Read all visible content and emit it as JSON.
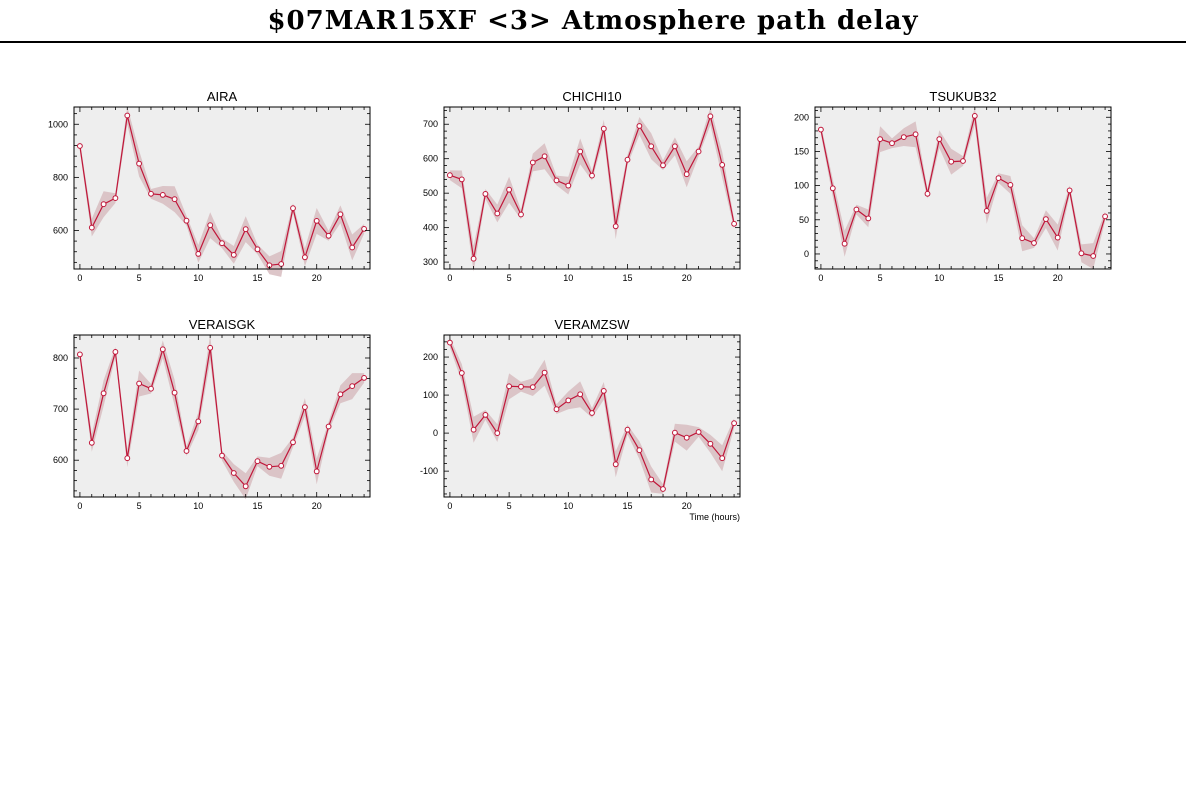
{
  "title": "$07MAR15XF <3>  Atmosphere path delay",
  "colors": {
    "line": "#c0173a",
    "band": "#d7bcc0",
    "panel_bg": "#eeeeee",
    "marker_fill": "#ffffff"
  },
  "chart_data": [
    {
      "type": "line",
      "title": "AIRA",
      "xlim": [
        -0.5,
        24.5
      ],
      "ylim": [
        455,
        1065
      ],
      "xticks": [
        0,
        5,
        10,
        15,
        20
      ],
      "yticks": [
        600,
        800,
        1000
      ],
      "xlabel": "",
      "series": [
        {
          "x": [
            0,
            1,
            2,
            3,
            4,
            5,
            6,
            7,
            8,
            9,
            10,
            11,
            12,
            13,
            14,
            15,
            16,
            17,
            18,
            19,
            20,
            21,
            22,
            23,
            24
          ],
          "values": [
            918,
            611,
            699,
            722,
            1033,
            852,
            738,
            734,
            718,
            637,
            512,
            620,
            552,
            508,
            605,
            529,
            469,
            474,
            684,
            499,
            636,
            580,
            661,
            536,
            606
          ]
        }
      ]
    },
    {
      "type": "line",
      "title": "CHICHI10",
      "xlim": [
        -0.5,
        24.5
      ],
      "ylim": [
        280,
        750
      ],
      "xticks": [
        0,
        5,
        10,
        15,
        20
      ],
      "yticks": [
        300,
        400,
        500,
        600,
        700
      ],
      "xlabel": "",
      "series": [
        {
          "x": [
            0,
            1,
            2,
            3,
            4,
            5,
            6,
            7,
            8,
            9,
            10,
            11,
            12,
            13,
            14,
            15,
            16,
            17,
            18,
            19,
            20,
            21,
            22,
            23,
            24
          ],
          "values": [
            552,
            540,
            310,
            498,
            441,
            510,
            438,
            589,
            607,
            537,
            522,
            621,
            551,
            687,
            404,
            597,
            695,
            636,
            581,
            636,
            555,
            621,
            723,
            582,
            411
          ]
        }
      ]
    },
    {
      "type": "line",
      "title": "TSUKUB32",
      "xlim": [
        -0.5,
        24.5
      ],
      "ylim": [
        -22,
        215
      ],
      "xticks": [
        0,
        5,
        10,
        15,
        20
      ],
      "yticks": [
        0,
        50,
        100,
        150,
        200
      ],
      "xlabel": "",
      "series": [
        {
          "x": [
            0,
            1,
            2,
            3,
            4,
            5,
            6,
            7,
            8,
            9,
            10,
            11,
            12,
            13,
            14,
            15,
            16,
            17,
            18,
            19,
            20,
            21,
            22,
            23,
            24
          ],
          "values": [
            182,
            96,
            15,
            65,
            52,
            168,
            162,
            171,
            175,
            88,
            168,
            135,
            136,
            202,
            63,
            111,
            101,
            23,
            16,
            51,
            24,
            93,
            1,
            -3,
            55
          ]
        }
      ]
    },
    {
      "type": "line",
      "title": "VERAISGK",
      "xlim": [
        -0.5,
        24.5
      ],
      "ylim": [
        528,
        845
      ],
      "xticks": [
        0,
        5,
        10,
        15,
        20
      ],
      "yticks": [
        600,
        700,
        800
      ],
      "xlabel": "",
      "series": [
        {
          "x": [
            0,
            1,
            2,
            3,
            4,
            5,
            6,
            7,
            8,
            9,
            10,
            11,
            12,
            13,
            14,
            15,
            16,
            17,
            18,
            19,
            20,
            21,
            22,
            23,
            24
          ],
          "values": [
            807,
            634,
            731,
            812,
            604,
            750,
            740,
            817,
            732,
            618,
            676,
            820,
            609,
            575,
            549,
            598,
            587,
            589,
            635,
            704,
            578,
            666,
            729,
            745,
            761
          ]
        }
      ]
    },
    {
      "type": "line",
      "title": "VERAMZSW",
      "xlim": [
        -0.5,
        24.5
      ],
      "ylim": [
        -168,
        258
      ],
      "xticks": [
        0,
        5,
        10,
        15,
        20
      ],
      "yticks": [
        -100,
        0,
        100,
        200
      ],
      "xlabel": "Time (hours)",
      "series": [
        {
          "x": [
            0,
            1,
            2,
            3,
            4,
            5,
            6,
            7,
            8,
            9,
            10,
            11,
            12,
            13,
            14,
            15,
            16,
            17,
            18,
            19,
            20,
            21,
            22,
            23,
            24
          ],
          "values": [
            238,
            158,
            9,
            48,
            0,
            123,
            122,
            121,
            159,
            63,
            86,
            102,
            53,
            111,
            -82,
            9,
            -45,
            -122,
            -147,
            1,
            -12,
            3,
            -28,
            -66,
            26
          ]
        }
      ]
    }
  ]
}
